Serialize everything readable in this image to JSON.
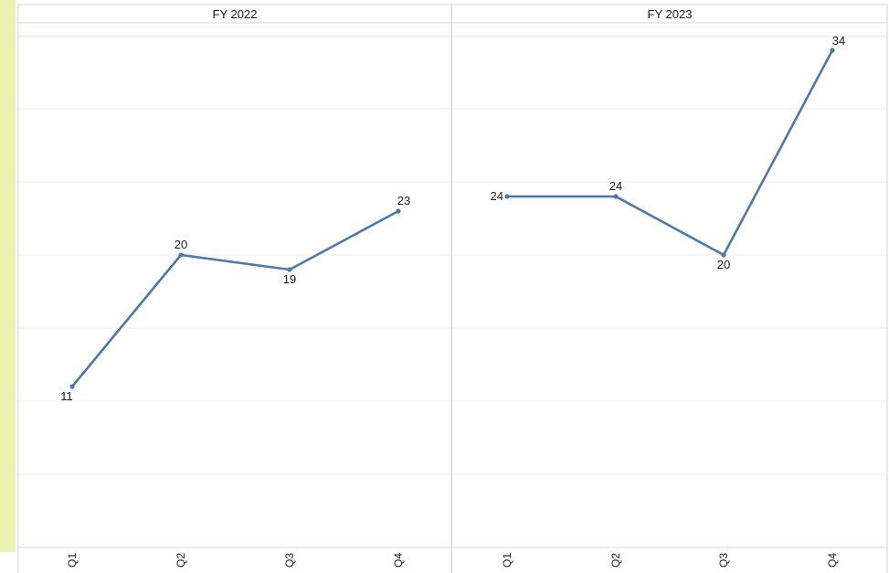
{
  "colors": {
    "line": "#4e79a7",
    "left_band": "#ecf2b0",
    "grid": "#ececec",
    "border": "#d4d4d4"
  },
  "chart_data": {
    "type": "line",
    "ylim": [
      0,
      36
    ],
    "grid": true,
    "panels": [
      {
        "header": "FY 2022",
        "categories": [
          "Q1",
          "Q2",
          "Q3",
          "Q4"
        ],
        "values": [
          11,
          20,
          19,
          23
        ],
        "labels": [
          "11",
          "20",
          "19",
          "23"
        ]
      },
      {
        "header": "FY 2023",
        "categories": [
          "Q1",
          "Q2",
          "Q3",
          "Q4"
        ],
        "values": [
          24,
          24,
          20,
          34
        ],
        "labels": [
          "24",
          "24",
          "20",
          "34"
        ]
      }
    ]
  }
}
